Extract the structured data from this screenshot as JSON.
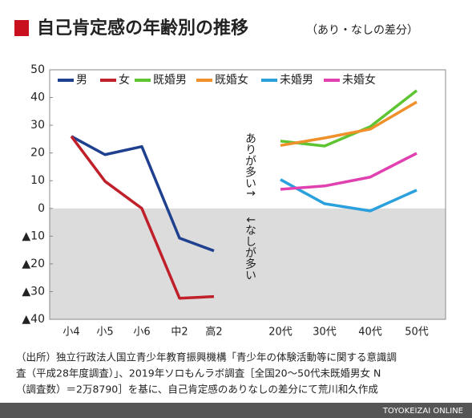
{
  "chart_data": {
    "type": "line",
    "title": "自己肯定感の年齢別の推移",
    "subtitle": "（あり・なしの差分）",
    "categories": [
      "小4",
      "小5",
      "小6",
      "中2",
      "高2",
      "20代",
      "30代",
      "40代",
      "50代"
    ],
    "series": [
      {
        "name": "男",
        "color": "#1f3f8f",
        "values": [
          26,
          19.4,
          22.3,
          -10.7,
          -15.3,
          null,
          null,
          null,
          null
        ]
      },
      {
        "name": "女",
        "color": "#c0202a",
        "values": [
          26,
          9.8,
          0,
          -32.4,
          -31.8,
          null,
          null,
          null,
          null
        ]
      },
      {
        "name": "既婚男",
        "color": "#5ec432",
        "values": [
          null,
          null,
          null,
          null,
          null,
          24.3,
          22.5,
          29.5,
          42.5
        ]
      },
      {
        "name": "既婚女",
        "color": "#f0902a",
        "values": [
          null,
          null,
          null,
          null,
          null,
          22.7,
          25.4,
          28.6,
          38.4
        ]
      },
      {
        "name": "未婚男",
        "color": "#2aa0dc",
        "values": [
          null,
          null,
          null,
          null,
          null,
          10.4,
          1.7,
          -0.9,
          6.6
        ]
      },
      {
        "name": "未婚女",
        "color": "#e040b0",
        "values": [
          null,
          null,
          null,
          null,
          null,
          6.9,
          8.1,
          11.3,
          19.9
        ]
      }
    ],
    "ylim": [
      -40,
      50
    ],
    "yticks": [
      50,
      40,
      30,
      20,
      10,
      0,
      {
        "value": -10,
        "label": "▲10"
      },
      {
        "value": -20,
        "label": "▲20"
      },
      {
        "value": -30,
        "label": "▲30"
      },
      {
        "value": -40,
        "label": "▲40"
      }
    ],
    "annotations": [
      "ありが多い↑",
      "↓なしが多い"
    ],
    "source": [
      "（出所）独立行政法人国立青少年教育振興機構「青少年の体験活動等に関する意識調",
      "査（平成28年度調査）」、2019年ソロもんラボ調査［全国20〜50代未既婚男女 N",
      "（調査数）＝2万8790］を基に、自己肯定感のありなしの差分にて荒川和久作成"
    ],
    "footer": "TOYOKEIZAI ONLINE"
  }
}
